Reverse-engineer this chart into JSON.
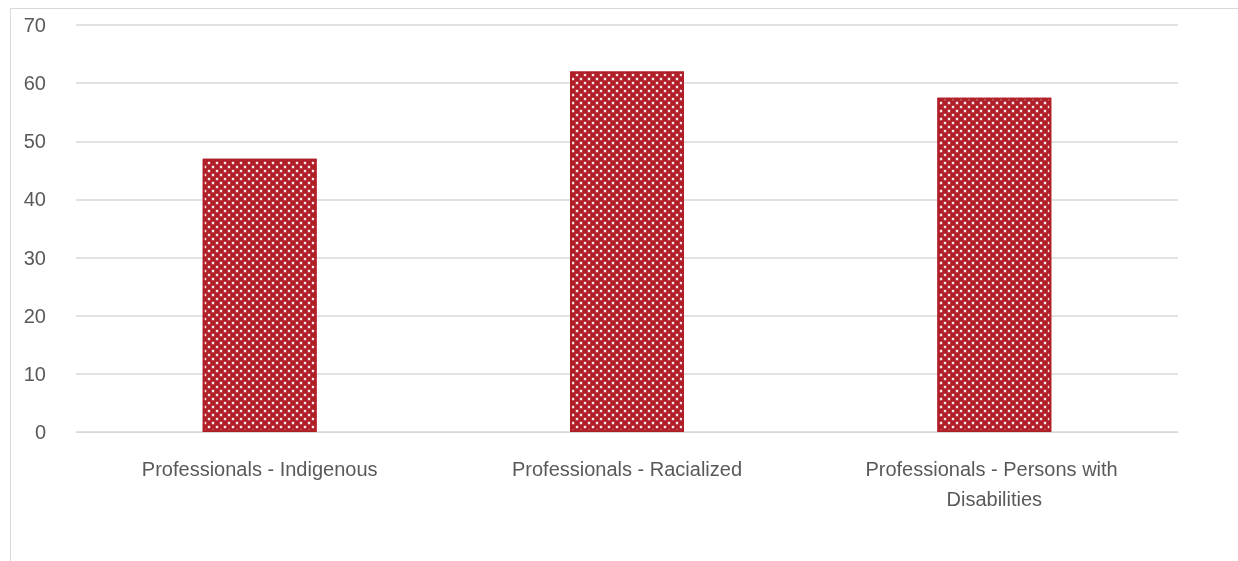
{
  "chart_data": {
    "type": "bar",
    "categories": [
      "Professionals - Indigenous",
      "Professionals - Racialized",
      "Professionals - Persons with Disabilities"
    ],
    "values": [
      47,
      62,
      57.5
    ],
    "color": "#b01e28",
    "ylim": [
      0,
      70
    ],
    "yticks": [
      0,
      10,
      20,
      30,
      40,
      50,
      60,
      70
    ],
    "grid": "y"
  }
}
